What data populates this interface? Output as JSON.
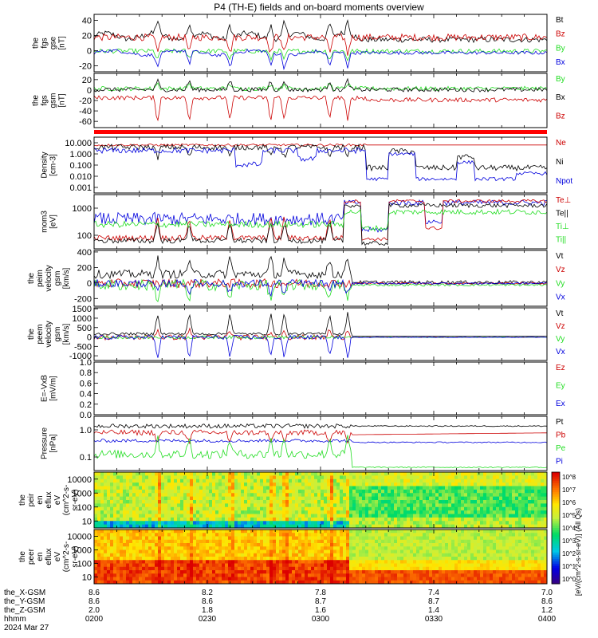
{
  "title": "P4 (TH-E) fields and on-board moments overview",
  "colors": {
    "black": "#000000",
    "red": "#cc0000",
    "green": "#22dd22",
    "blue": "#0000dd",
    "bar": "#ff0000"
  },
  "chart_data": [
    {
      "type": "line",
      "id": "fgs_gse",
      "ylabel": [
        "the",
        "fgs",
        "gse",
        "[nT]"
      ],
      "yticks": [
        40,
        20,
        0,
        -20
      ],
      "ylim": [
        -28,
        48
      ],
      "legend": [
        {
          "label": "Bt",
          "color": "black"
        },
        {
          "label": "Bz",
          "color": "red"
        },
        {
          "label": "By",
          "color": "green"
        },
        {
          "label": "Bx",
          "color": "blue"
        }
      ]
    },
    {
      "type": "line",
      "id": "fgs_gsm",
      "ylabel": [
        "the",
        "fgs",
        "gsm",
        "[nT]"
      ],
      "yticks": [
        20,
        0,
        -20,
        -40,
        -60
      ],
      "ylim": [
        -72,
        32
      ],
      "legend": [
        {
          "label": "By",
          "color": "green"
        },
        {
          "label": "Bx",
          "color": "black"
        },
        {
          "label": "Bz",
          "color": "red"
        }
      ]
    },
    {
      "type": "bar",
      "id": "flag_bar"
    },
    {
      "type": "line",
      "id": "density",
      "ylabel": [
        "Density",
        "[cm-3]"
      ],
      "yticks": [
        "10.000",
        "1.000",
        "0.100",
        "0.010",
        "0.001"
      ],
      "scale": "log",
      "legend": [
        {
          "label": "Ne",
          "color": "red"
        },
        {
          "label": "Ni",
          "color": "black"
        },
        {
          "label": "Npot",
          "color": "blue"
        }
      ]
    },
    {
      "type": "line",
      "id": "temperature",
      "ylabel": [
        "mom3",
        "[eV]"
      ],
      "yticks": [
        "1000",
        "100"
      ],
      "scale": "log",
      "legend": [
        {
          "label": "Te⊥",
          "color": "red"
        },
        {
          "label": "Te||",
          "color": "black"
        },
        {
          "label": "Ti⊥",
          "color": "green"
        },
        {
          "label": "Ti||",
          "color": "green"
        }
      ]
    },
    {
      "type": "line",
      "id": "peim_velocity",
      "ylabel": [
        "the",
        "peim",
        "velocity",
        "gsm",
        "[km/s]"
      ],
      "yticks": [
        400,
        200,
        0,
        -200
      ],
      "ylim": [
        -300,
        420
      ],
      "legend": [
        {
          "label": "Vt",
          "color": "black"
        },
        {
          "label": "Vz",
          "color": "red"
        },
        {
          "label": "Vy",
          "color": "green"
        },
        {
          "label": "Vx",
          "color": "blue"
        }
      ]
    },
    {
      "type": "line",
      "id": "peem_velocity",
      "ylabel": [
        "the",
        "peem",
        "velocity",
        "gsm",
        "[km/s]"
      ],
      "yticks": [
        1500,
        1000,
        500,
        0,
        -500,
        -1000
      ],
      "ylim": [
        -1250,
        1550
      ],
      "legend": [
        {
          "label": "Vt",
          "color": "black"
        },
        {
          "label": "Vz",
          "color": "red"
        },
        {
          "label": "Vy",
          "color": "green"
        },
        {
          "label": "Vx",
          "color": "blue"
        }
      ]
    },
    {
      "type": "line",
      "id": "efield",
      "ylabel": [
        "E=-VxB",
        "[mV/m]"
      ],
      "yticks": [
        "1.0",
        "0.8",
        "0.6",
        "0.4",
        "0.2",
        "0.0"
      ],
      "ylim": [
        0,
        1
      ],
      "legend": [
        {
          "label": "Ez",
          "color": "red"
        },
        {
          "label": "Ey",
          "color": "green"
        },
        {
          "label": "Ex",
          "color": "blue"
        }
      ]
    },
    {
      "type": "line",
      "id": "pressure",
      "ylabel": [
        "Pressure",
        "[nPa]"
      ],
      "yticks": [
        "1.0",
        "0.1"
      ],
      "scale": "log",
      "legend": [
        {
          "label": "Pt",
          "color": "black"
        },
        {
          "label": "Pb",
          "color": "red"
        },
        {
          "label": "Pe",
          "color": "green"
        },
        {
          "label": "Pi",
          "color": "blue"
        }
      ]
    },
    {
      "type": "heatmap",
      "id": "peir_eflux",
      "ylabel": [
        "the",
        "peir",
        "en",
        "eflux",
        "eV",
        "(cm^2-s-",
        "sr-eV)"
      ],
      "yticks": [
        "10000",
        "1000",
        "100",
        "10"
      ],
      "scale": "log"
    },
    {
      "type": "heatmap",
      "id": "peer_eflux",
      "ylabel": [
        "the",
        "peer",
        "en",
        "eflux",
        "eV",
        "(cm^2-s-",
        "sr-eV)"
      ],
      "yticks": [
        "10000",
        "1000",
        "100",
        "10"
      ],
      "scale": "log"
    }
  ],
  "colorbar_ticks": [
    "10^8",
    "10^7",
    "10^6",
    "10^5",
    "10^4",
    "10^3",
    "10^2",
    "10^1",
    "10^0"
  ],
  "colorbar_label": "[eV/(cm^2-s-sr-eV)] (All Qs)",
  "xaxis": {
    "row_labels": [
      "the_X-GSM",
      "the_Y-GSM",
      "the_Z-GSM",
      "hhmm",
      "2024 Mar 27"
    ],
    "x_gsm": [
      "8.6",
      "8.2",
      "7.8",
      "7.4",
      "7.0"
    ],
    "y_gsm": [
      "8.6",
      "8.6",
      "8.7",
      "8.7",
      "8.6"
    ],
    "z_gsm": [
      "2.0",
      "1.8",
      "1.6",
      "1.4",
      "1.2"
    ],
    "hhmm": [
      "0200",
      "0230",
      "0300",
      "0330",
      "0400"
    ]
  }
}
